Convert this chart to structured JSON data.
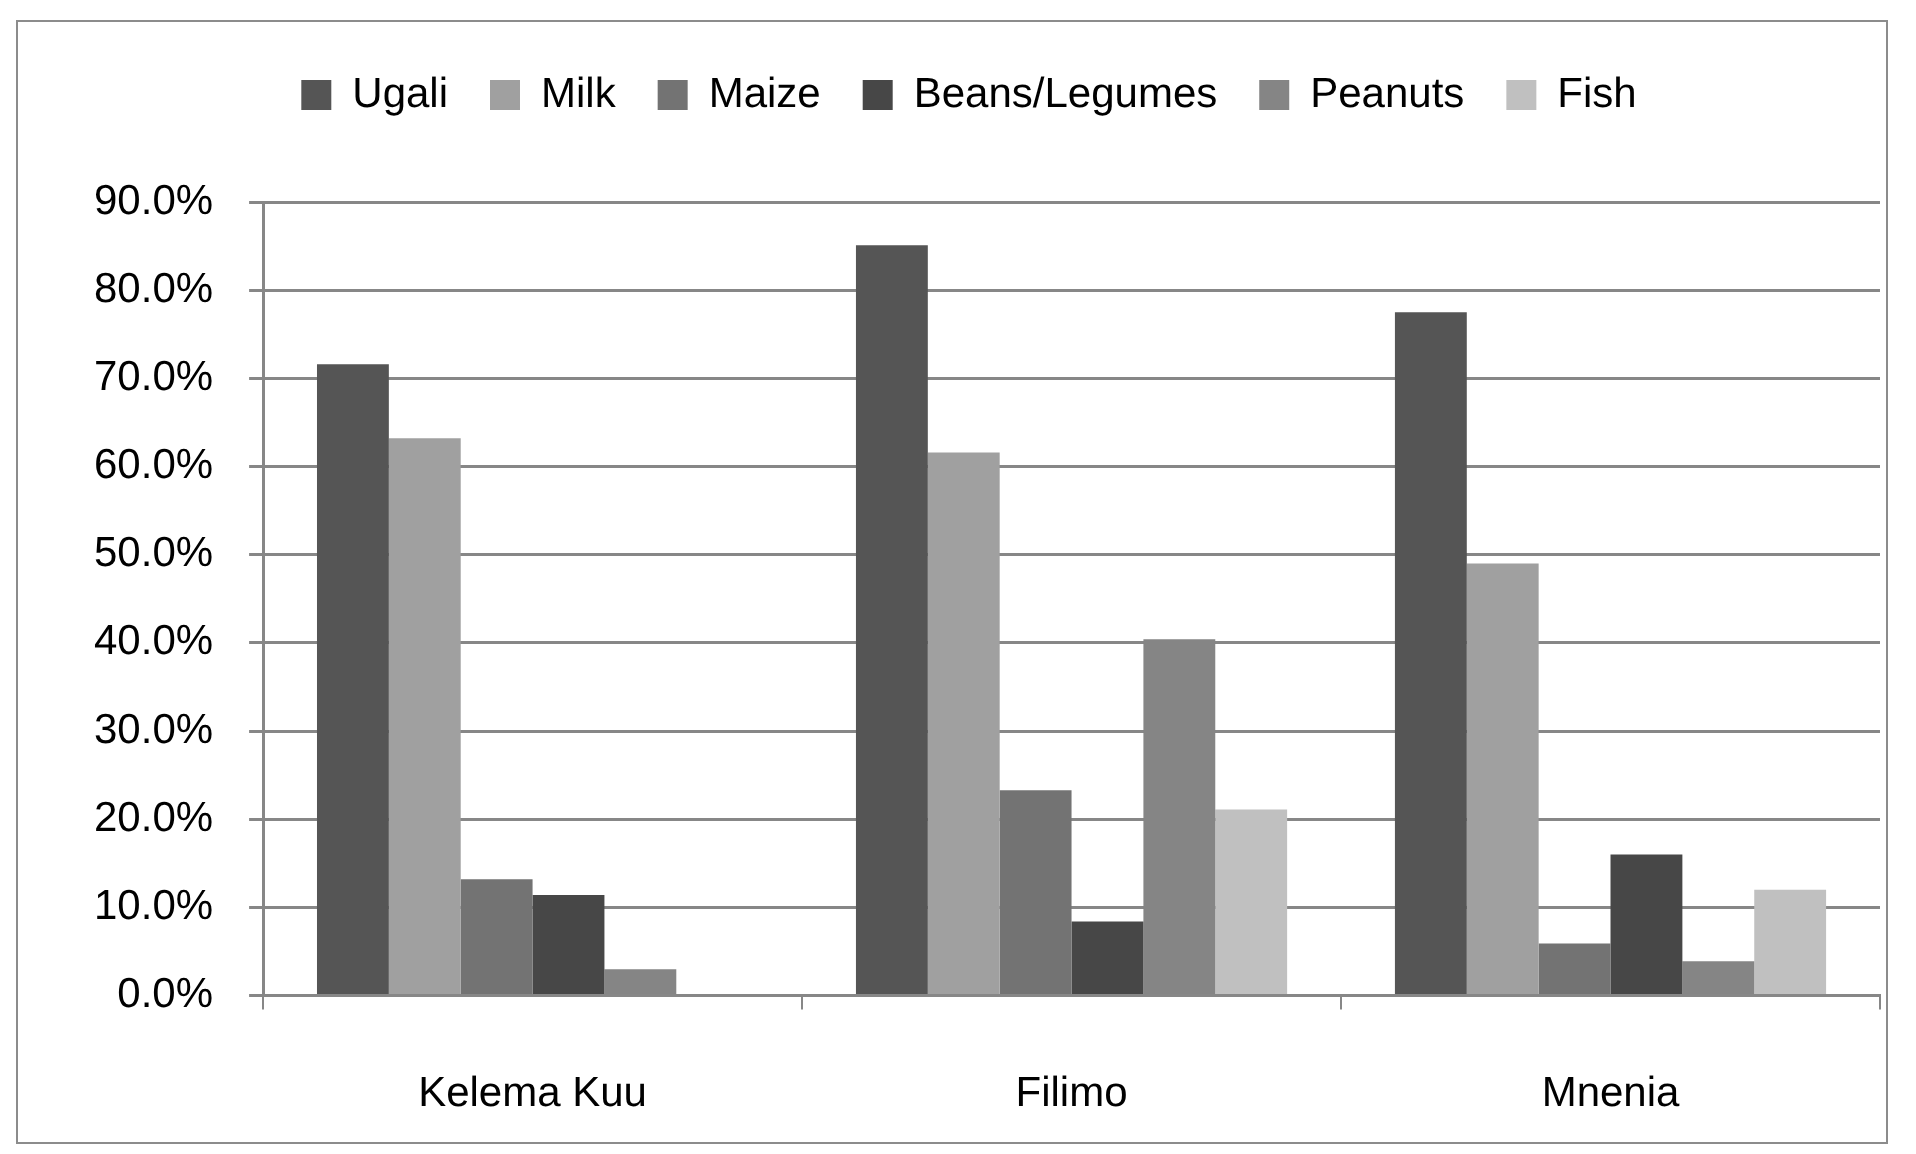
{
  "chart_data": {
    "type": "bar",
    "categories": [
      "Kelema Kuu",
      "Filimo",
      "Mnenia"
    ],
    "series": [
      {
        "name": "Ugali",
        "color": "#555555",
        "values": [
          71.6,
          85.1,
          77.5
        ]
      },
      {
        "name": "Milk",
        "color": "#a0a0a0",
        "values": [
          63.2,
          61.6,
          49.0
        ]
      },
      {
        "name": "Maize",
        "color": "#737373",
        "values": [
          13.2,
          23.3,
          5.9
        ]
      },
      {
        "name": "Beans/Legumes",
        "color": "#474747",
        "values": [
          11.4,
          8.4,
          16.0
        ]
      },
      {
        "name": "Peanuts",
        "color": "#858585",
        "values": [
          3.0,
          40.4,
          3.9
        ]
      },
      {
        "name": "Fish",
        "color": "#c0c0c0",
        "values": [
          0,
          21.1,
          12.0
        ]
      }
    ],
    "ylim": [
      0,
      90
    ],
    "yticks": [
      {
        "value": 0,
        "label": "0.0%"
      },
      {
        "value": 10,
        "label": "10.0%"
      },
      {
        "value": 20,
        "label": "20.0%"
      },
      {
        "value": 30,
        "label": "30.0%"
      },
      {
        "value": 40,
        "label": "40.0%"
      },
      {
        "value": 50,
        "label": "50.0%"
      },
      {
        "value": 60,
        "label": "60.0%"
      },
      {
        "value": 70,
        "label": "70.0%"
      },
      {
        "value": 80,
        "label": "80.0%"
      },
      {
        "value": 90,
        "label": "90.0%"
      }
    ],
    "grid": "y",
    "legend": "top"
  }
}
